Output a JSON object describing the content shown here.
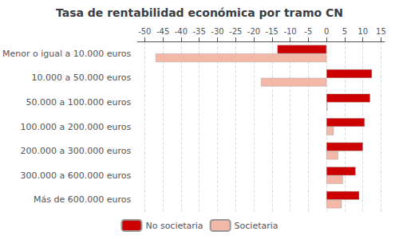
{
  "chart_data": {
    "type": "bar",
    "orientation": "horizontal",
    "title": "Tasa de rentabilidad económica por tramo CN",
    "categories": [
      "Menor o igual a 10.000 euros",
      "10.000 a 50.000 euros",
      "50.000 a 100.000 euros",
      "100.000 a 200.000 euros",
      "200.000 a 300.000 euros",
      "300.000 a 600.000 euros",
      "Más de 600.000 euros"
    ],
    "series": [
      {
        "name": "No societaria",
        "color": "#cc0000",
        "values": [
          -13.5,
          12.5,
          12.0,
          10.5,
          10.0,
          8.0,
          9.0
        ]
      },
      {
        "name": "Societaria",
        "color": "#f4b8a8",
        "values": [
          -47.0,
          -18.0,
          0.3,
          2.0,
          3.2,
          4.5,
          4.2
        ]
      }
    ],
    "xlim": [
      -52,
      16
    ],
    "xticks": [
      -50,
      -45,
      -40,
      -35,
      -30,
      -25,
      -20,
      -15,
      -10,
      -5,
      0,
      5,
      10,
      15
    ],
    "grid": true,
    "legend": "bottom"
  }
}
